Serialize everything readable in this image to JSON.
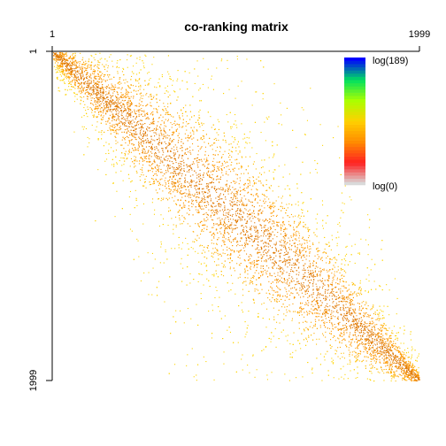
{
  "chart_data": {
    "type": "heatmap",
    "title": "co-ranking matrix",
    "xlabel": "",
    "ylabel": "",
    "xlim": [
      1,
      1999
    ],
    "ylim": [
      1,
      1999
    ],
    "x_ticks": [
      "1",
      "1999"
    ],
    "y_ticks": [
      "1",
      "1999"
    ],
    "x_axis_position": "top",
    "y_axis_reversed": true,
    "grid": false,
    "color_scale": {
      "type": "log",
      "min_label": "log(0)",
      "max_label": "log(189)",
      "min_value": 0,
      "max_value": 189,
      "colors_low_to_high": [
        "#d9d9d9",
        "#ff2020",
        "#ff8c00",
        "#ffd000",
        "#aaff00",
        "#00e060",
        "#0000ff"
      ],
      "legend_position": "top-right"
    },
    "pattern": "mass concentrated along diagonal, spread wider in middle ranks, dense at both ends",
    "colors": {
      "point": "#ff9900",
      "axis": "#000000",
      "background": "#ffffff"
    }
  }
}
